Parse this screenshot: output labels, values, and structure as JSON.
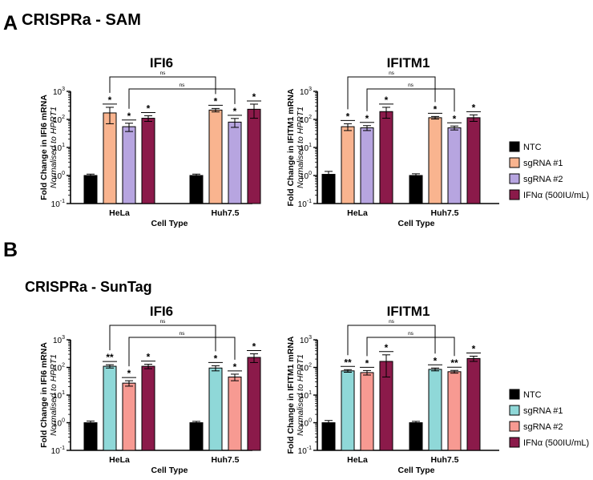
{
  "panels": [
    {
      "letter": "A",
      "heading": "CRISPRa - SAM",
      "legend": [
        {
          "label": "NTC",
          "color": "#000000"
        },
        {
          "label": "sgRNA #1",
          "color": "#f9b48f"
        },
        {
          "label": "sgRNA #2",
          "color": "#b7a5e0"
        },
        {
          "label": "IFNα (500IU/mL)",
          "color": "#8b1a4a"
        }
      ]
    },
    {
      "letter": "B",
      "heading": "CRISPRa - SunTag",
      "legend": [
        {
          "label": "NTC",
          "color": "#000000"
        },
        {
          "label": "sgRNA #1",
          "color": "#8fd8d8"
        },
        {
          "label": "sgRNA #2",
          "color": "#f79a92"
        },
        {
          "label": "IFNα (500IU/mL)",
          "color": "#8b1a4a"
        }
      ]
    }
  ],
  "chart_data": [
    {
      "type": "bar",
      "panel": "A",
      "title": "IFI6",
      "xlabel": "Cell Type",
      "ylabel": "Fold Change in IFI6 mRNA",
      "ylabel2": "Normalised to HPRT1",
      "yscale": "log",
      "ylim": [
        0.1,
        1000
      ],
      "yticks": [
        "10-1",
        "100",
        "101",
        "102",
        "103"
      ],
      "categories": [
        "HeLa",
        "Huh7.5"
      ],
      "series": [
        {
          "name": "NTC",
          "color": "#000000",
          "values": [
            1.0,
            1.0
          ],
          "errors": [
            0.12,
            0.12
          ],
          "sig": [
            "",
            ""
          ]
        },
        {
          "name": "sgRNA #1",
          "color": "#f9b48f",
          "values": [
            170,
            215
          ],
          "errors": [
            100,
            30
          ],
          "sig": [
            "*",
            "*"
          ]
        },
        {
          "name": "sgRNA #2",
          "color": "#b7a5e0",
          "values": [
            55,
            80
          ],
          "errors": [
            18,
            28
          ],
          "sig": [
            "*",
            "*"
          ]
        },
        {
          "name": "IFNα (500IU/mL)",
          "color": "#8b1a4a",
          "values": [
            110,
            230
          ],
          "errors": [
            25,
            120
          ],
          "sig": [
            "*",
            "*"
          ]
        }
      ],
      "brackets": [
        {
          "label": "ns"
        },
        {
          "label": "ns"
        }
      ]
    },
    {
      "type": "bar",
      "panel": "A",
      "title": "IFITM1",
      "xlabel": "Cell Type",
      "ylabel": "Fold Change in IFITM1 mRNA",
      "ylabel2": "Normalised to HPRT1",
      "yscale": "log",
      "ylim": [
        0.1,
        1000
      ],
      "yticks": [
        "10-1",
        "100",
        "101",
        "102",
        "103"
      ],
      "categories": [
        "HeLa",
        "Huh7.5"
      ],
      "series": [
        {
          "name": "NTC",
          "color": "#000000",
          "values": [
            1.1,
            1.0
          ],
          "errors": [
            0.3,
            0.15
          ],
          "sig": [
            "",
            ""
          ]
        },
        {
          "name": "sgRNA #1",
          "color": "#f9b48f",
          "values": [
            55,
            115
          ],
          "errors": [
            15,
            12
          ],
          "sig": [
            "*",
            "*"
          ]
        },
        {
          "name": "sgRNA #2",
          "color": "#b7a5e0",
          "values": [
            50,
            50
          ],
          "errors": [
            10,
            8
          ],
          "sig": [
            "*",
            "*"
          ]
        },
        {
          "name": "IFNα (500IU/mL)",
          "color": "#8b1a4a",
          "values": [
            190,
            115
          ],
          "errors": [
            80,
            30
          ],
          "sig": [
            "*",
            "*"
          ]
        }
      ],
      "brackets": [
        {
          "label": "ns"
        },
        {
          "label": "ns"
        }
      ]
    },
    {
      "type": "bar",
      "panel": "B",
      "title": "IFI6",
      "xlabel": "Cell Type",
      "ylabel": "Fold Change in IFI6 mRNA",
      "ylabel2": "Normalised to HPRT1",
      "yscale": "log",
      "ylim": [
        0.1,
        1000
      ],
      "yticks": [
        "10-1",
        "100",
        "101",
        "102",
        "103"
      ],
      "categories": [
        "HeLa",
        "Huh7.5"
      ],
      "series": [
        {
          "name": "NTC",
          "color": "#000000",
          "values": [
            1.0,
            1.0
          ],
          "errors": [
            0.15,
            0.12
          ],
          "sig": [
            "",
            ""
          ]
        },
        {
          "name": "sgRNA #1",
          "color": "#8fd8d8",
          "values": [
            110,
            95
          ],
          "errors": [
            15,
            20
          ],
          "sig": [
            "**",
            "*"
          ]
        },
        {
          "name": "sgRNA #2",
          "color": "#f79a92",
          "values": [
            27,
            45
          ],
          "errors": [
            6,
            12
          ],
          "sig": [
            "*",
            "*"
          ]
        },
        {
          "name": "IFNα (500IU/mL)",
          "color": "#8b1a4a",
          "values": [
            110,
            230
          ],
          "errors": [
            20,
            80
          ],
          "sig": [
            "*",
            "*"
          ]
        }
      ],
      "brackets": [
        {
          "label": "ns"
        },
        {
          "label": "ns"
        }
      ]
    },
    {
      "type": "bar",
      "panel": "B",
      "title": "IFITM1",
      "xlabel": "Cell Type",
      "ylabel": "Fold Change in IFITM1 mRNA",
      "ylabel2": "Normalised to HPRT1",
      "yscale": "log",
      "ylim": [
        0.1,
        1000
      ],
      "yticks": [
        "10-1",
        "100",
        "101",
        "102",
        "103"
      ],
      "categories": [
        "HeLa",
        "Huh7.5"
      ],
      "series": [
        {
          "name": "NTC",
          "color": "#000000",
          "values": [
            1.0,
            1.0
          ],
          "errors": [
            0.2,
            0.12
          ],
          "sig": [
            "",
            ""
          ]
        },
        {
          "name": "sgRNA #1",
          "color": "#8fd8d8",
          "values": [
            75,
            85
          ],
          "errors": [
            8,
            10
          ],
          "sig": [
            "**",
            "*"
          ]
        },
        {
          "name": "sgRNA #2",
          "color": "#f79a92",
          "values": [
            65,
            70
          ],
          "errors": [
            12,
            8
          ],
          "sig": [
            "*",
            "**"
          ]
        },
        {
          "name": "IFNα (500IU/mL)",
          "color": "#8b1a4a",
          "values": [
            165,
            210
          ],
          "errors": [
            120,
            45
          ],
          "sig": [
            "*",
            "*"
          ]
        }
      ],
      "brackets": [
        {
          "label": "ns"
        },
        {
          "label": "ns"
        }
      ]
    }
  ]
}
